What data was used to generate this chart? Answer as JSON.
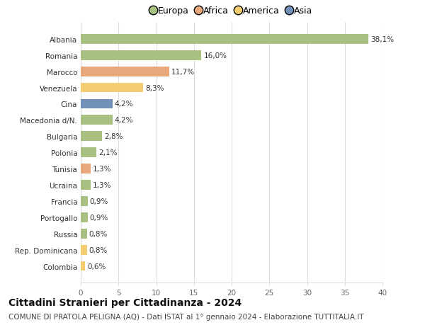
{
  "categories": [
    "Albania",
    "Romania",
    "Marocco",
    "Venezuela",
    "Cina",
    "Macedonia d/N.",
    "Bulgaria",
    "Polonia",
    "Tunisia",
    "Ucraina",
    "Francia",
    "Portogallo",
    "Russia",
    "Rep. Dominicana",
    "Colombia"
  ],
  "values": [
    38.1,
    16.0,
    11.7,
    8.3,
    4.2,
    4.2,
    2.8,
    2.1,
    1.3,
    1.3,
    0.9,
    0.9,
    0.8,
    0.8,
    0.6
  ],
  "labels": [
    "38,1%",
    "16,0%",
    "11,7%",
    "8,3%",
    "4,2%",
    "4,2%",
    "2,8%",
    "2,1%",
    "1,3%",
    "1,3%",
    "0,9%",
    "0,9%",
    "0,8%",
    "0,8%",
    "0,6%"
  ],
  "colors": [
    "#a8c080",
    "#a8c080",
    "#e8a87c",
    "#f5cc70",
    "#7090b8",
    "#a8c080",
    "#a8c080",
    "#a8c080",
    "#e8a87c",
    "#a8c080",
    "#a8c080",
    "#a8c080",
    "#a8c080",
    "#f5cc70",
    "#f5cc70"
  ],
  "legend_labels": [
    "Europa",
    "Africa",
    "America",
    "Asia"
  ],
  "legend_colors": [
    "#a8c080",
    "#e8a87c",
    "#f5cc70",
    "#7090b8"
  ],
  "title": "Cittadini Stranieri per Cittadinanza - 2024",
  "subtitle": "COMUNE DI PRATOLA PELIGNA (AQ) - Dati ISTAT al 1° gennaio 2024 - Elaborazione TUTTITALIA.IT",
  "xlim": [
    0,
    40
  ],
  "xticks": [
    0,
    5,
    10,
    15,
    20,
    25,
    30,
    35,
    40
  ],
  "bg_color": "#ffffff",
  "grid_color": "#dddddd",
  "title_fontsize": 10,
  "subtitle_fontsize": 7.5,
  "label_fontsize": 7.5,
  "tick_fontsize": 7.5,
  "legend_fontsize": 9
}
